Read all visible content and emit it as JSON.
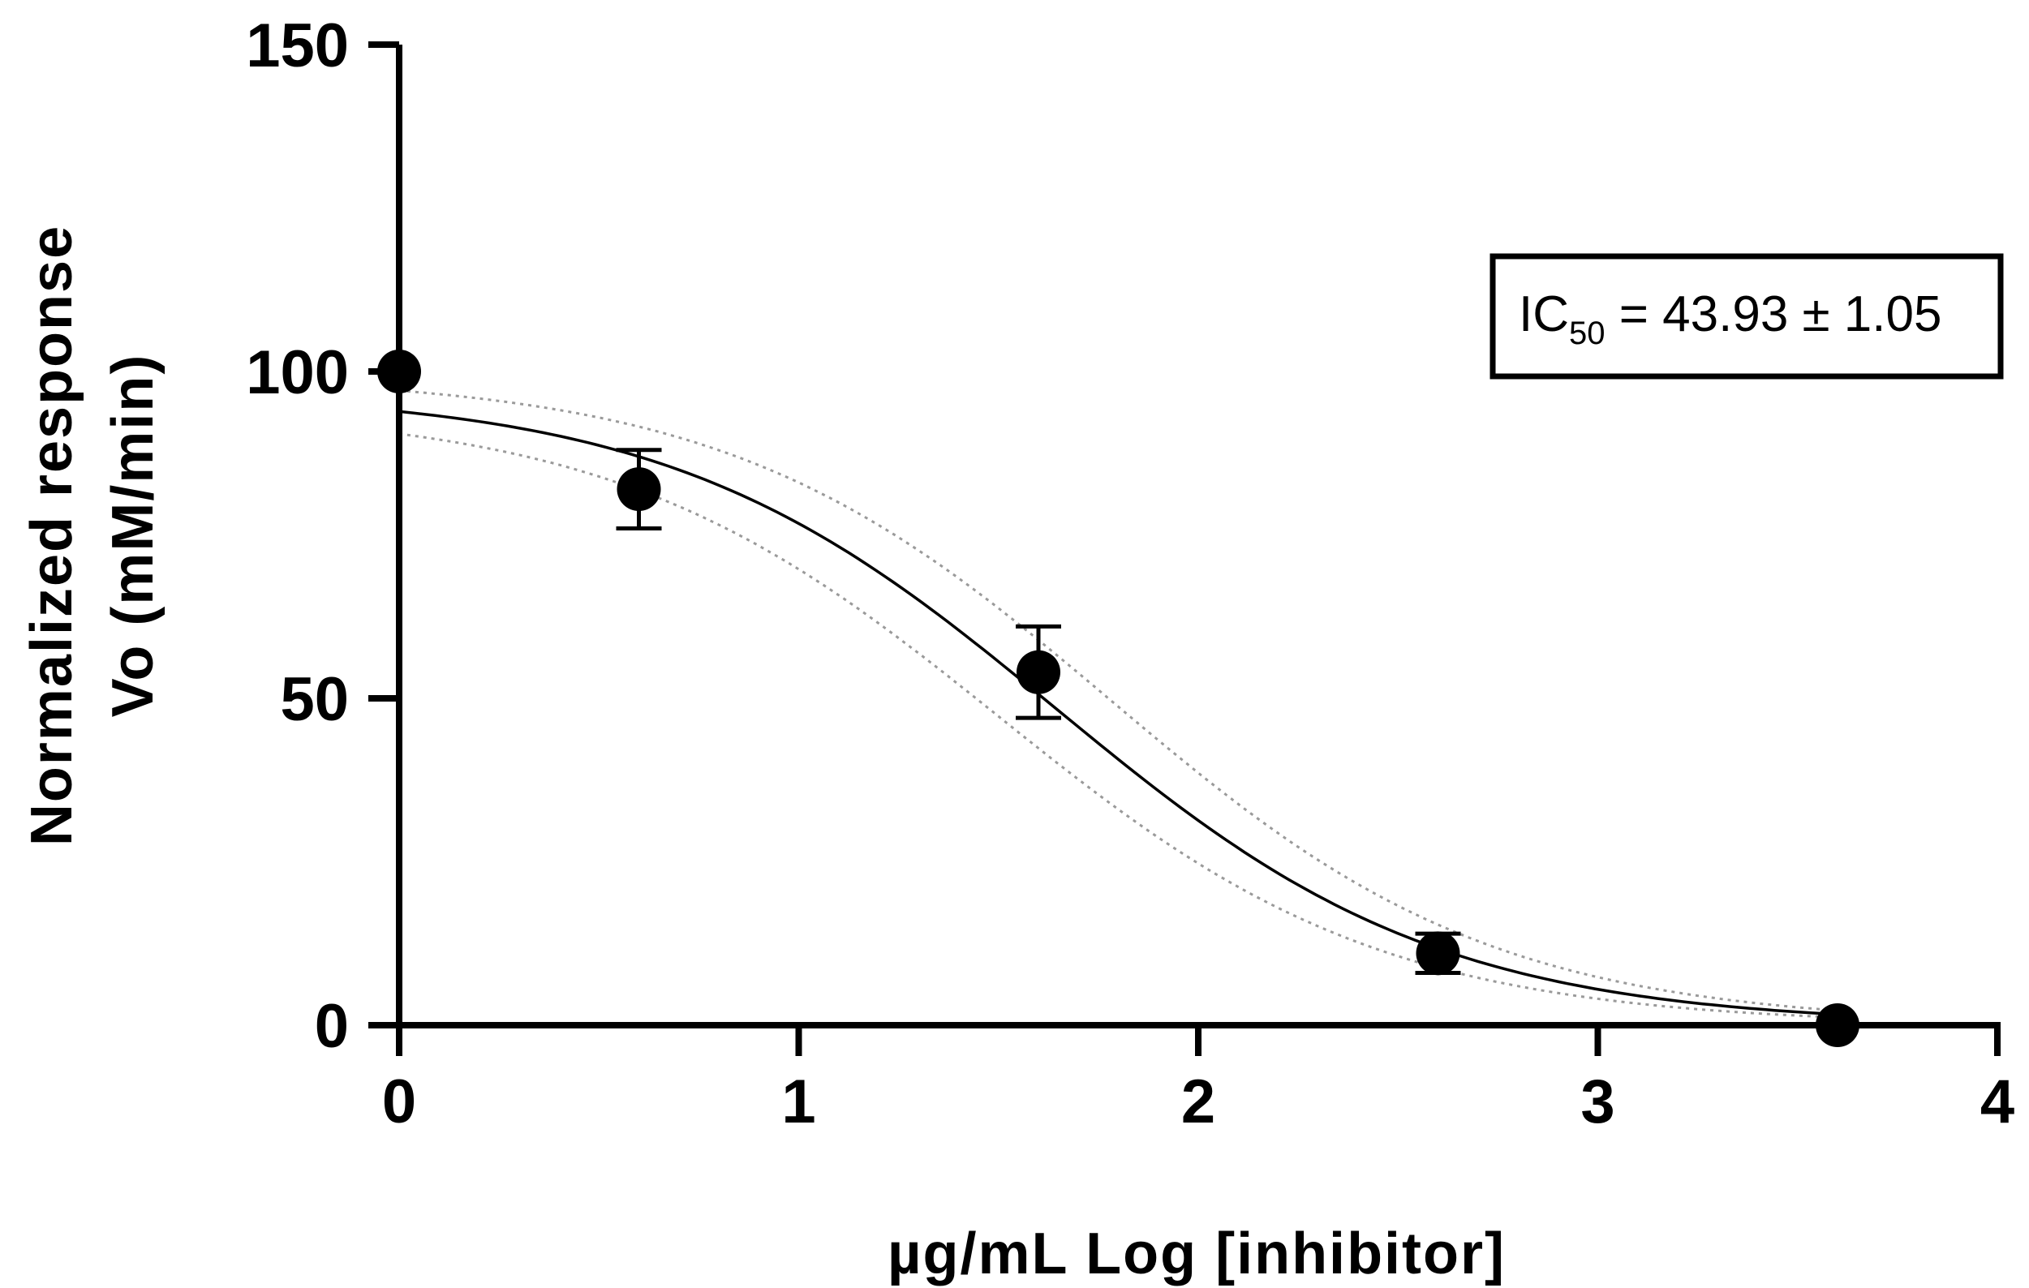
{
  "chart_data": {
    "type": "scatter",
    "xlabel": "µg/mL Log [inhibitor]",
    "ylabel_lines": [
      "Normalized response",
      "Vo (mM/min)"
    ],
    "xlim": [
      0,
      4
    ],
    "ylim": [
      0,
      150
    ],
    "x_ticks": [
      0,
      1,
      2,
      3,
      4
    ],
    "y_ticks": [
      0,
      50,
      100,
      150
    ],
    "grid": false,
    "points": [
      {
        "x": 0.0,
        "y": 100,
        "error": 0
      },
      {
        "x": 0.6,
        "y": 82,
        "error": 6
      },
      {
        "x": 1.6,
        "y": 54,
        "error": 7
      },
      {
        "x": 2.6,
        "y": 11,
        "error": 3
      },
      {
        "x": 3.6,
        "y": 0,
        "error": 0
      }
    ],
    "fit": {
      "model": "four-parameter logistic (inhibitor vs. response)",
      "top": 97,
      "bottom": 0,
      "log_ic50": 1.6427,
      "hill_slope": -0.9,
      "band_upper": {
        "top": 99.5,
        "log_ic50": 1.78
      },
      "band_lower": {
        "top": 94.5,
        "log_ic50": 1.5
      },
      "curve_color": "#000000",
      "band_color": "#9a9a9a"
    },
    "annotation": {
      "prefix": "IC",
      "subscript": "50",
      "value_text": " = 43.93 ± 1.05"
    },
    "marker_color": "#000000"
  }
}
